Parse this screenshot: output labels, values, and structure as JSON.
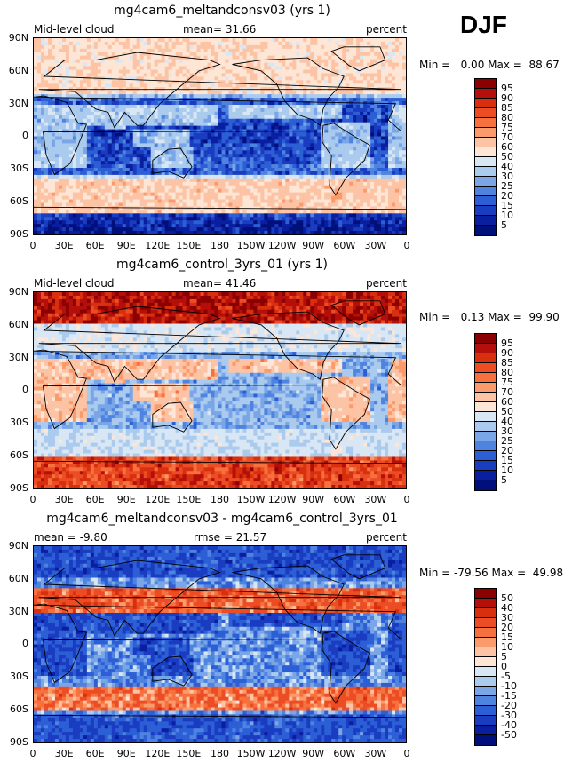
{
  "season": "DJF",
  "panels": [
    {
      "title": "mg4cam6_meltandconsv03 (yrs 1)",
      "left_label": "Mid-level cloud",
      "mean_label": "mean=  31.66",
      "units": "percent",
      "min_max": "Min =   0.00 Max =  88.67",
      "colorbar_labels": [
        "95",
        "90",
        "85",
        "80",
        "75",
        "70",
        "60",
        "50",
        "40",
        "30",
        "25",
        "20",
        "15",
        "10",
        "5"
      ],
      "colorbar_colors": [
        "#8b0000",
        "#b40f0a",
        "#d8300f",
        "#ec4d24",
        "#f7713f",
        "#fb9a6b",
        "#fcc3a4",
        "#fde6d6",
        "#d9e7f5",
        "#aacbee",
        "#7aa6e8",
        "#4f83e0",
        "#2c5fd6",
        "#1a3cc0",
        "#0a1ea0",
        "#00107a"
      ],
      "field_type": "cloud_exp"
    },
    {
      "title": "mg4cam6_control_3yrs_01 (yrs 1)",
      "left_label": "Mid-level cloud",
      "mean_label": "mean=  41.46",
      "units": "percent",
      "min_max": "Min =   0.13 Max =  99.90",
      "colorbar_labels": [
        "95",
        "90",
        "85",
        "80",
        "75",
        "70",
        "60",
        "50",
        "40",
        "30",
        "25",
        "20",
        "15",
        "10",
        "5"
      ],
      "colorbar_colors": [
        "#8b0000",
        "#b40f0a",
        "#d8300f",
        "#ec4d24",
        "#f7713f",
        "#fb9a6b",
        "#fcc3a4",
        "#fde6d6",
        "#d9e7f5",
        "#aacbee",
        "#7aa6e8",
        "#4f83e0",
        "#2c5fd6",
        "#1a3cc0",
        "#0a1ea0",
        "#00107a"
      ],
      "field_type": "cloud_ctl"
    },
    {
      "title": "mg4cam6_meltandconsv03 - mg4cam6_control_3yrs_01",
      "left_label": "mean =  -9.80",
      "mean_label": "rmse =  21.57",
      "units": "percent",
      "min_max": "Min = -79.56 Max =  49.98",
      "colorbar_labels": [
        "50",
        "40",
        "30",
        "20",
        "15",
        "10",
        "5",
        "0",
        "-5",
        "-10",
        "-15",
        "-20",
        "-30",
        "-40",
        "-50"
      ],
      "colorbar_colors": [
        "#8b0000",
        "#b40f0a",
        "#d8300f",
        "#ec4d24",
        "#f7713f",
        "#fb9a6b",
        "#fcc3a4",
        "#fde6d6",
        "#d9e7f5",
        "#aacbee",
        "#7aa6e8",
        "#4f83e0",
        "#2c5fd6",
        "#1a3cc0",
        "#0a1ea0",
        "#00107a"
      ],
      "field_type": "diff"
    }
  ],
  "lat_labels": [
    "90N",
    "60N",
    "30N",
    "0",
    "30S",
    "60S",
    "90S"
  ],
  "lon_labels": [
    "0",
    "30E",
    "60E",
    "90E",
    "120E",
    "150E",
    "180",
    "150W",
    "120W",
    "90W",
    "60W",
    "30W",
    "0"
  ]
}
